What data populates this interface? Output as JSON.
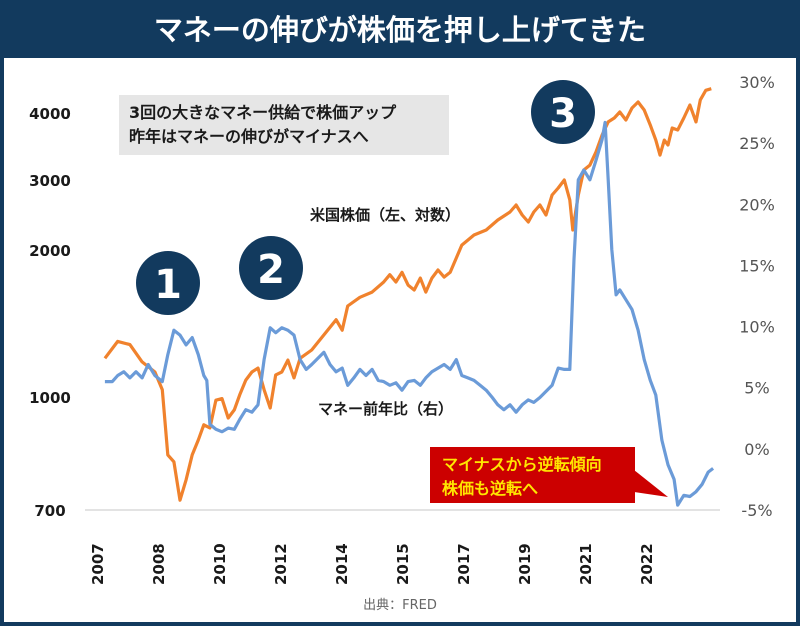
{
  "title": "マネーの伸びが株価を押し上げてきた",
  "note_lines": [
    "3回の大きなマネー供給で株価アップ",
    "昨年はマネーの伸びがマイナスへ"
  ],
  "callout_lines": [
    "マイナスから逆転傾向",
    "株価も逆転へ"
  ],
  "markers": [
    "1",
    "2",
    "3"
  ],
  "source": "出典：FRED",
  "colors": {
    "navy": "#123a5e",
    "orange": "#f0822d",
    "blue": "#6b9bd8",
    "callout_bg": "#cc0000",
    "callout_text": "#ffe600",
    "note_bg": "#e6e6e6"
  },
  "chart_data": {
    "type": "line",
    "title": "マネーの伸びが株価を押し上げてきた",
    "x_tick_labels": [
      "2007",
      "2008",
      "2010",
      "2012",
      "2014",
      "2015",
      "2017",
      "2019",
      "2021",
      "2022"
    ],
    "x_range": [
      0,
      10.2
    ],
    "left_axis": {
      "label": "米国株価（左、対数）",
      "scale": "log",
      "ticks": [
        700,
        1000,
        2000,
        3000,
        4000
      ],
      "tick_labels": [
        "700",
        "1000",
        "2000",
        "3000",
        "4000"
      ]
    },
    "right_axis": {
      "label": "マネー前年比（右）",
      "ticks": [
        -5,
        0,
        5,
        10,
        15,
        20,
        25,
        30
      ],
      "tick_labels": [
        "-5%",
        "0%",
        "5%",
        "10%",
        "15%",
        "20%",
        "25%",
        "30%"
      ],
      "range": [
        -5,
        30
      ]
    },
    "series": [
      {
        "name": "米国株価（左、対数）",
        "axis": "left",
        "color": "#f0822d",
        "points": [
          [
            0.13,
            1200
          ],
          [
            0.34,
            1300
          ],
          [
            0.54,
            1280
          ],
          [
            0.74,
            1180
          ],
          [
            0.95,
            1125
          ],
          [
            1.07,
            1035
          ],
          [
            1.16,
            833
          ],
          [
            1.26,
            815
          ],
          [
            1.36,
            722
          ],
          [
            1.46,
            770
          ],
          [
            1.56,
            833
          ],
          [
            1.66,
            873
          ],
          [
            1.75,
            916
          ],
          [
            1.85,
            907
          ],
          [
            1.95,
            990
          ],
          [
            2.05,
            995
          ],
          [
            2.15,
            936
          ],
          [
            2.25,
            960
          ],
          [
            2.34,
            1010
          ],
          [
            2.44,
            1083
          ],
          [
            2.54,
            1125
          ],
          [
            2.64,
            1146
          ],
          [
            2.74,
            1035
          ],
          [
            2.84,
            966
          ],
          [
            2.93,
            1110
          ],
          [
            3.03,
            1125
          ],
          [
            3.13,
            1190
          ],
          [
            3.23,
            1094
          ],
          [
            3.33,
            1200
          ],
          [
            3.52,
            1248
          ],
          [
            3.72,
            1340
          ],
          [
            3.92,
            1440
          ],
          [
            4.02,
            1370
          ],
          [
            4.11,
            1536
          ],
          [
            4.31,
            1600
          ],
          [
            4.51,
            1640
          ],
          [
            4.7,
            1720
          ],
          [
            4.8,
            1780
          ],
          [
            4.9,
            1720
          ],
          [
            5.0,
            1800
          ],
          [
            5.1,
            1695
          ],
          [
            5.2,
            1656
          ],
          [
            5.3,
            1752
          ],
          [
            5.39,
            1640
          ],
          [
            5.49,
            1752
          ],
          [
            5.59,
            1820
          ],
          [
            5.69,
            1760
          ],
          [
            5.79,
            1800
          ],
          [
            5.89,
            1926
          ],
          [
            5.98,
            2058
          ],
          [
            6.18,
            2182
          ],
          [
            6.38,
            2246
          ],
          [
            6.57,
            2380
          ],
          [
            6.77,
            2492
          ],
          [
            6.87,
            2596
          ],
          [
            6.97,
            2450
          ],
          [
            7.07,
            2352
          ],
          [
            7.16,
            2492
          ],
          [
            7.26,
            2596
          ],
          [
            7.36,
            2450
          ],
          [
            7.46,
            2750
          ],
          [
            7.56,
            2864
          ],
          [
            7.66,
            3000
          ],
          [
            7.75,
            2672
          ],
          [
            7.8,
            2246
          ],
          [
            7.89,
            2750
          ],
          [
            7.98,
            3132
          ],
          [
            8.08,
            3198
          ],
          [
            8.18,
            3384
          ],
          [
            8.28,
            3640
          ],
          [
            8.38,
            3850
          ],
          [
            8.48,
            3915
          ],
          [
            8.57,
            4017
          ],
          [
            8.67,
            3882
          ],
          [
            8.77,
            4087
          ],
          [
            8.87,
            4194
          ],
          [
            8.97,
            4051
          ],
          [
            9.07,
            3798
          ],
          [
            9.16,
            3561
          ],
          [
            9.23,
            3339
          ],
          [
            9.3,
            3561
          ],
          [
            9.36,
            3486
          ],
          [
            9.43,
            3750
          ],
          [
            9.52,
            3718
          ],
          [
            9.62,
            3915
          ],
          [
            9.72,
            4140
          ],
          [
            9.82,
            3850
          ],
          [
            9.89,
            4231
          ],
          [
            9.98,
            4410
          ],
          [
            10.07,
            4440
          ]
        ]
      },
      {
        "name": "マネー前年比（右）",
        "axis": "right",
        "color": "#6b9bd8",
        "points": [
          [
            0.13,
            5.5
          ],
          [
            0.25,
            5.5
          ],
          [
            0.34,
            6.0
          ],
          [
            0.44,
            6.3
          ],
          [
            0.54,
            5.8
          ],
          [
            0.64,
            6.3
          ],
          [
            0.74,
            5.8
          ],
          [
            0.84,
            6.9
          ],
          [
            0.95,
            6.0
          ],
          [
            1.07,
            5.5
          ],
          [
            1.16,
            7.7
          ],
          [
            1.26,
            9.7
          ],
          [
            1.36,
            9.3
          ],
          [
            1.46,
            8.5
          ],
          [
            1.56,
            9.1
          ],
          [
            1.66,
            7.7
          ],
          [
            1.75,
            6.0
          ],
          [
            1.8,
            5.6
          ],
          [
            1.85,
            2.0
          ],
          [
            1.95,
            1.6
          ],
          [
            2.05,
            1.4
          ],
          [
            2.15,
            1.7
          ],
          [
            2.25,
            1.6
          ],
          [
            2.34,
            2.4
          ],
          [
            2.44,
            3.2
          ],
          [
            2.54,
            3.0
          ],
          [
            2.64,
            3.6
          ],
          [
            2.74,
            7.3
          ],
          [
            2.84,
            9.9
          ],
          [
            2.93,
            9.5
          ],
          [
            3.03,
            9.9
          ],
          [
            3.13,
            9.7
          ],
          [
            3.23,
            9.3
          ],
          [
            3.33,
            7.3
          ],
          [
            3.43,
            6.5
          ],
          [
            3.52,
            6.9
          ],
          [
            3.62,
            7.4
          ],
          [
            3.72,
            7.9
          ],
          [
            3.82,
            6.9
          ],
          [
            3.92,
            6.3
          ],
          [
            4.02,
            6.6
          ],
          [
            4.11,
            5.2
          ],
          [
            4.21,
            5.8
          ],
          [
            4.31,
            6.5
          ],
          [
            4.41,
            6.0
          ],
          [
            4.51,
            6.5
          ],
          [
            4.61,
            5.6
          ],
          [
            4.7,
            5.5
          ],
          [
            4.8,
            5.2
          ],
          [
            4.9,
            5.4
          ],
          [
            5.0,
            4.8
          ],
          [
            5.1,
            5.5
          ],
          [
            5.2,
            5.6
          ],
          [
            5.3,
            5.2
          ],
          [
            5.39,
            5.8
          ],
          [
            5.49,
            6.3
          ],
          [
            5.59,
            6.6
          ],
          [
            5.69,
            6.9
          ],
          [
            5.79,
            6.5
          ],
          [
            5.89,
            7.3
          ],
          [
            5.98,
            6.0
          ],
          [
            6.08,
            5.8
          ],
          [
            6.18,
            5.6
          ],
          [
            6.28,
            5.2
          ],
          [
            6.38,
            4.8
          ],
          [
            6.48,
            4.2
          ],
          [
            6.57,
            3.6
          ],
          [
            6.67,
            3.2
          ],
          [
            6.77,
            3.6
          ],
          [
            6.87,
            3.0
          ],
          [
            6.97,
            3.6
          ],
          [
            7.07,
            4.0
          ],
          [
            7.16,
            3.8
          ],
          [
            7.26,
            4.2
          ],
          [
            7.36,
            4.7
          ],
          [
            7.46,
            5.2
          ],
          [
            7.56,
            6.6
          ],
          [
            7.66,
            6.5
          ],
          [
            7.75,
            6.5
          ],
          [
            7.82,
            15.5
          ],
          [
            7.89,
            22.0
          ],
          [
            7.98,
            22.8
          ],
          [
            8.08,
            22.0
          ],
          [
            8.18,
            23.6
          ],
          [
            8.28,
            25.3
          ],
          [
            8.33,
            26.7
          ],
          [
            8.38,
            22.0
          ],
          [
            8.44,
            16.3
          ],
          [
            8.51,
            12.6
          ],
          [
            8.57,
            13.0
          ],
          [
            8.67,
            12.2
          ],
          [
            8.77,
            11.4
          ],
          [
            8.87,
            9.7
          ],
          [
            8.97,
            7.3
          ],
          [
            9.07,
            5.6
          ],
          [
            9.16,
            4.4
          ],
          [
            9.26,
            0.7
          ],
          [
            9.36,
            -1.3
          ],
          [
            9.46,
            -2.5
          ],
          [
            9.52,
            -4.6
          ],
          [
            9.62,
            -3.8
          ],
          [
            9.72,
            -3.9
          ],
          [
            9.82,
            -3.5
          ],
          [
            9.92,
            -2.9
          ],
          [
            10.02,
            -1.9
          ],
          [
            10.1,
            -1.6
          ]
        ]
      }
    ]
  }
}
